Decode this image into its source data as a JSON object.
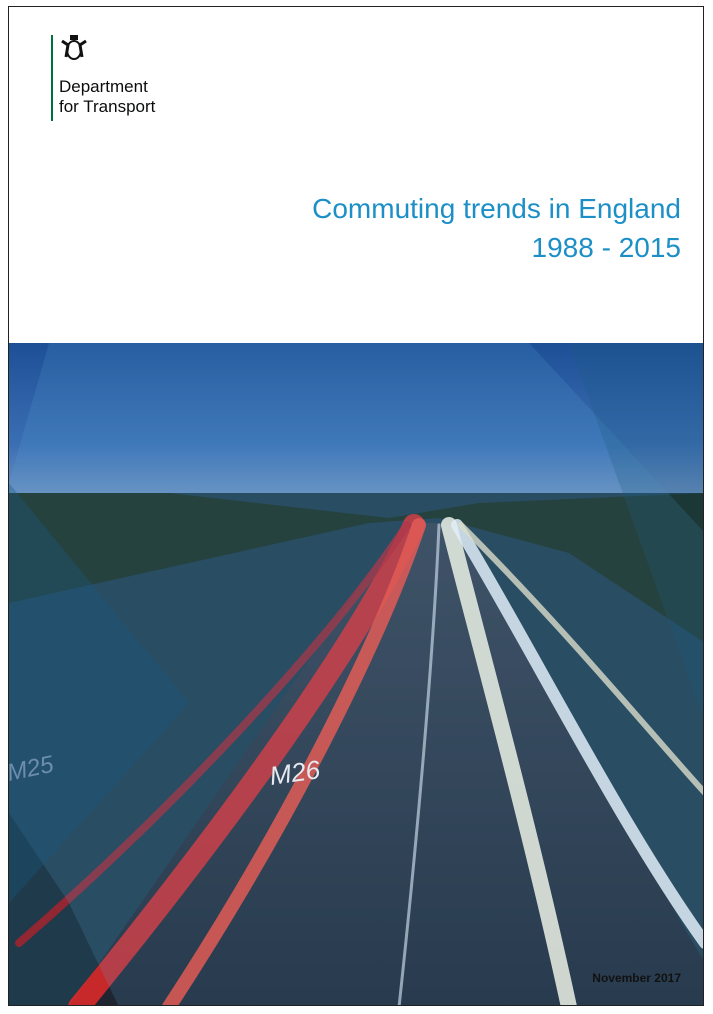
{
  "header": {
    "organisation": [
      "Department",
      "for Transport"
    ]
  },
  "title": {
    "line1": "Commuting trends in England",
    "line2": "1988 - 2015"
  },
  "cover_image": {
    "road_markings": [
      "M26",
      "M25"
    ]
  },
  "date": "November 2017"
}
